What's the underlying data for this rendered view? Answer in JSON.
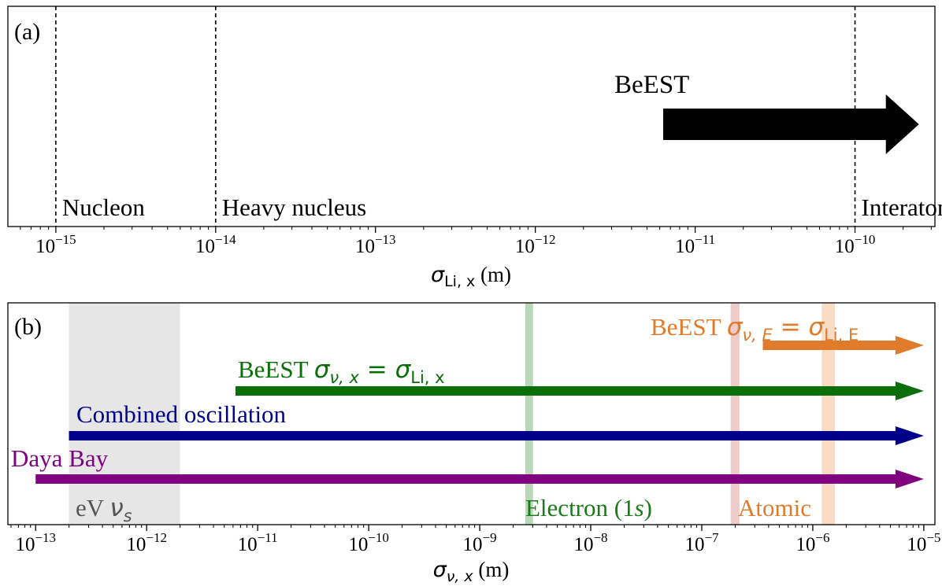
{
  "chart_data": [
    {
      "type": "scale-diagram",
      "panel_label": "(a)",
      "xscale": "log",
      "xlim_exponents": [
        -15.3,
        -9.5
      ],
      "xlabel": {
        "symbol": "σ",
        "subscript": "Li, x",
        "unit": "(m)"
      },
      "ticks": [
        {
          "base": "10",
          "exp": "−15",
          "value": -15
        },
        {
          "base": "10",
          "exp": "−14",
          "value": -14
        },
        {
          "base": "10",
          "exp": "−13",
          "value": -13
        },
        {
          "base": "10",
          "exp": "−12",
          "value": -12
        },
        {
          "base": "10",
          "exp": "−11",
          "value": -11
        },
        {
          "base": "10",
          "exp": "−10",
          "value": -10
        }
      ],
      "reference_lines": [
        {
          "label": "Nucleon",
          "value": -15
        },
        {
          "label": "Heavy nucleus",
          "value": -14
        },
        {
          "label": "Interatomic",
          "value": -10
        }
      ],
      "arrow": {
        "label": "BeEST",
        "from": -11.2,
        "to": -9.6,
        "color": "#000000"
      }
    },
    {
      "type": "scale-diagram",
      "panel_label": "(b)",
      "xscale": "log",
      "xlim_exponents": [
        -13.25,
        -4.9
      ],
      "xlabel": {
        "symbol": "σ",
        "subscript": "ν, x",
        "unit": "(m)"
      },
      "ticks": [
        {
          "base": "10",
          "exp": "−13",
          "value": -13
        },
        {
          "base": "10",
          "exp": "−12",
          "value": -12
        },
        {
          "base": "10",
          "exp": "−11",
          "value": -11
        },
        {
          "base": "10",
          "exp": "−10",
          "value": -10
        },
        {
          "base": "10",
          "exp": "−9",
          "value": -9
        },
        {
          "base": "10",
          "exp": "−8",
          "value": -8
        },
        {
          "base": "10",
          "exp": "−7",
          "value": -7
        },
        {
          "base": "10",
          "exp": "−6",
          "value": -6
        },
        {
          "base": "10",
          "exp": "−5",
          "value": -5
        }
      ],
      "bands": [
        {
          "name": "eV-sterile",
          "from": -12.7,
          "to": -11.7,
          "color": "#b0b0b0",
          "opacity": 0.32
        },
        {
          "name": "electron-1s",
          "from": -8.59,
          "to": -8.52,
          "color": "#4f9a4f",
          "opacity": 0.4
        },
        {
          "name": "atomic-1",
          "from": -6.74,
          "to": -6.66,
          "color": "#d98c8c",
          "opacity": 0.45
        },
        {
          "name": "atomic-2",
          "from": -5.92,
          "to": -5.8,
          "color": "#f2a66b",
          "opacity": 0.4
        }
      ],
      "band_labels": {
        "ev_nu": {
          "prefix": "eV ",
          "symbol": "ν",
          "sub": "s",
          "color": "#555555"
        },
        "electron": {
          "prefix": "Electron (1",
          "italic": "s",
          "suffix": ")",
          "color": "#1a7a1a"
        },
        "atomic": {
          "text": "Atomic",
          "color": "#e07b2c"
        }
      },
      "arrows": [
        {
          "name": "beest-energy",
          "label_prefix": "BeEST ",
          "math": "σ_{ν,E} = σ_{Li,E}",
          "lhs_sym": "σ",
          "lhs_sub": "ν, E",
          "eq": " = ",
          "rhs_sym": "σ",
          "rhs_sub": "Li, E",
          "from": -6.45,
          "to": -5.0,
          "color": "#e07b2c"
        },
        {
          "name": "beest-position",
          "label_prefix": "BeEST ",
          "math": "σ_{ν,x} = σ_{Li,x}",
          "lhs_sym": "σ",
          "lhs_sub": "ν, x",
          "eq": " = ",
          "rhs_sym": "σ",
          "rhs_sub": "Li, x",
          "from": -11.2,
          "to": -5.0,
          "color": "#0a6e0a"
        },
        {
          "name": "combined-oscillation",
          "label_prefix": "Combined oscillation",
          "from": -12.7,
          "to": -5.0,
          "color": "#00008b"
        },
        {
          "name": "daya-bay",
          "label_prefix": "Daya Bay",
          "from": -13.0,
          "to": -5.0,
          "color": "#800080"
        }
      ]
    }
  ]
}
